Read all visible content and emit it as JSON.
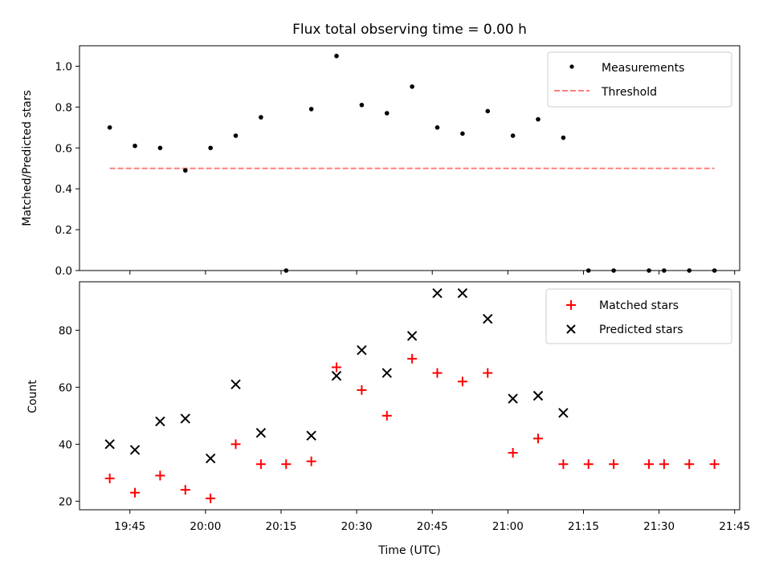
{
  "chart_data": [
    {
      "type": "scatter",
      "title": "Flux total observing time = 0.00 h",
      "ylabel": "Matched/Predicted stars",
      "ylim": [
        0,
        1.1
      ],
      "yticks": [
        "0.0",
        "0.2",
        "0.4",
        "0.6",
        "0.8",
        "1.0"
      ],
      "ytick_values": [
        0,
        0.2,
        0.4,
        0.6,
        0.8,
        1.0
      ],
      "legend": {
        "position": "top-right",
        "entries": [
          "Measurements",
          "Threshold"
        ]
      },
      "series": [
        {
          "name": "Measurements",
          "color": "#000000",
          "marker": "dot",
          "x": [
            "19:41",
            "19:46",
            "19:51",
            "19:56",
            "20:01",
            "20:06",
            "20:11",
            "20:16",
            "20:21",
            "20:26",
            "20:31",
            "20:36",
            "20:41",
            "20:46",
            "20:51",
            "20:56",
            "21:01",
            "21:06",
            "21:11",
            "21:16",
            "21:21",
            "21:28",
            "21:31",
            "21:36",
            "21:41"
          ],
          "y": [
            0.7,
            0.61,
            0.6,
            0.49,
            0.6,
            0.66,
            0.75,
            0.0,
            0.79,
            1.05,
            0.81,
            0.77,
            0.9,
            0.7,
            0.67,
            0.78,
            0.66,
            0.74,
            0.65,
            0.0,
            0.0,
            0.0,
            0.0,
            0.0,
            0.0
          ]
        },
        {
          "name": "Threshold",
          "color": "#ff7f7f",
          "style": "dashed",
          "x": [
            "19:41",
            "21:41"
          ],
          "y": [
            0.5,
            0.5
          ]
        }
      ]
    },
    {
      "type": "scatter",
      "xlabel": "Time (UTC)",
      "ylabel": "Count",
      "ylim": [
        17,
        97
      ],
      "yticks": [
        "20",
        "40",
        "60",
        "80"
      ],
      "ytick_values": [
        20,
        40,
        60,
        80
      ],
      "xlim": [
        "19:35",
        "21:46"
      ],
      "xticks": [
        "19:45",
        "20:00",
        "20:15",
        "20:30",
        "20:45",
        "21:00",
        "21:15",
        "21:30",
        "21:45"
      ],
      "legend": {
        "position": "top-right",
        "entries": [
          "Matched stars",
          "Predicted stars"
        ]
      },
      "series": [
        {
          "name": "Matched stars",
          "color": "#ff0000",
          "marker": "plus",
          "x": [
            "19:41",
            "19:46",
            "19:51",
            "19:56",
            "20:01",
            "20:06",
            "20:11",
            "20:16",
            "20:21",
            "20:26",
            "20:31",
            "20:36",
            "20:41",
            "20:46",
            "20:51",
            "20:56",
            "21:01",
            "21:06",
            "21:11",
            "21:16",
            "21:21",
            "21:28",
            "21:31",
            "21:36",
            "21:41"
          ],
          "y": [
            28,
            23,
            29,
            24,
            21,
            40,
            33,
            33,
            34,
            67,
            59,
            50,
            70,
            65,
            62,
            65,
            37,
            42,
            33,
            33,
            33,
            33,
            33,
            33,
            33
          ]
        },
        {
          "name": "Predicted stars",
          "color": "#000000",
          "marker": "x",
          "x": [
            "19:41",
            "19:46",
            "19:51",
            "19:56",
            "20:01",
            "20:06",
            "20:11",
            "20:21",
            "20:26",
            "20:31",
            "20:36",
            "20:41",
            "20:46",
            "20:51",
            "20:56",
            "21:01",
            "21:06",
            "21:11"
          ],
          "y": [
            40,
            38,
            48,
            49,
            35,
            61,
            44,
            43,
            64,
            73,
            65,
            78,
            93,
            93,
            84,
            56,
            57,
            51
          ]
        }
      ]
    }
  ]
}
